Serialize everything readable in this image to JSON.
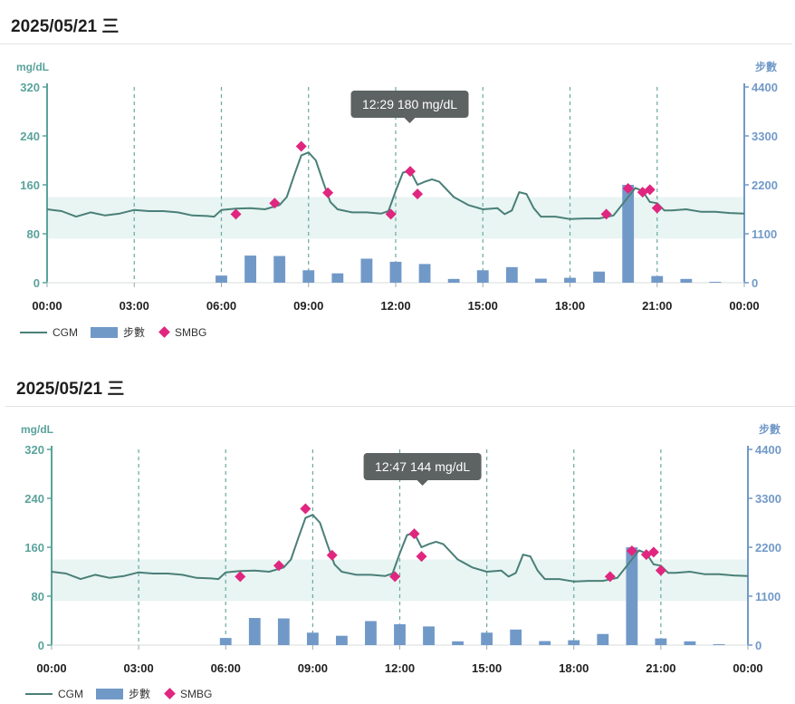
{
  "panels": [
    {
      "title": "2025/05/21 三",
      "tooltip_text": "12:29 180 mg/dL",
      "tooltip_time": 749
    },
    {
      "title": "2025/05/21 三",
      "tooltip_text": "12:47 144 mg/dL",
      "tooltip_time": 767
    }
  ],
  "legend": {
    "cgm": "CGM",
    "steps": "步數",
    "smbg": "SMBG"
  },
  "colors": {
    "cgm_line": "#4a7f78",
    "steps_bar": "#7199c8",
    "smbg_marker": "#e0267f",
    "target_band": "#e8f5f2",
    "left_axis": "#5aa39b",
    "right_axis": "#7199c8",
    "tooltip_bg": "#5d6262"
  },
  "chart_data": {
    "type": "line",
    "x_unit": "time of day",
    "xlim": [
      "00:00",
      "24:00"
    ],
    "x_ticks": [
      "00:00",
      "03:00",
      "06:00",
      "09:00",
      "12:00",
      "15:00",
      "18:00",
      "21:00",
      "00:00"
    ],
    "left_axis": {
      "label": "mg/dL",
      "ylim": [
        0,
        320
      ],
      "ticks": [
        0,
        80,
        160,
        240,
        320
      ]
    },
    "right_axis": {
      "label": "步數",
      "ylim": [
        0,
        4400
      ],
      "ticks": [
        0,
        1100,
        2200,
        3300,
        4400
      ]
    },
    "target_range": [
      72,
      140
    ],
    "grid": "vertical dashed at 3-hour ticks",
    "legend_position": "bottom-left",
    "series": [
      {
        "name": "CGM",
        "type": "line",
        "axis": "left",
        "points": [
          [
            "00:00",
            120
          ],
          [
            "00:30",
            117
          ],
          [
            "01:00",
            108
          ],
          [
            "01:30",
            115
          ],
          [
            "02:00",
            110
          ],
          [
            "02:30",
            113
          ],
          [
            "03:00",
            119
          ],
          [
            "03:30",
            117
          ],
          [
            "04:00",
            117
          ],
          [
            "04:30",
            115
          ],
          [
            "05:00",
            110
          ],
          [
            "05:30",
            109
          ],
          [
            "05:45",
            108
          ],
          [
            "06:00",
            119
          ],
          [
            "06:30",
            121
          ],
          [
            "07:00",
            122
          ],
          [
            "07:30",
            120
          ],
          [
            "08:00",
            127
          ],
          [
            "08:15",
            140
          ],
          [
            "08:30",
            175
          ],
          [
            "08:45",
            208
          ],
          [
            "09:00",
            213
          ],
          [
            "09:15",
            200
          ],
          [
            "09:30",
            165
          ],
          [
            "09:45",
            132
          ],
          [
            "10:00",
            120
          ],
          [
            "10:30",
            115
          ],
          [
            "11:00",
            115
          ],
          [
            "11:30",
            113
          ],
          [
            "11:45",
            117
          ],
          [
            "12:00",
            150
          ],
          [
            "12:15",
            180
          ],
          [
            "12:30",
            183
          ],
          [
            "12:45",
            160
          ],
          [
            "13:00",
            165
          ],
          [
            "13:15",
            169
          ],
          [
            "13:30",
            165
          ],
          [
            "14:00",
            140
          ],
          [
            "14:30",
            127
          ],
          [
            "15:00",
            120
          ],
          [
            "15:30",
            122
          ],
          [
            "15:45",
            112
          ],
          [
            "16:00",
            118
          ],
          [
            "16:15",
            148
          ],
          [
            "16:30",
            145
          ],
          [
            "16:45",
            122
          ],
          [
            "17:00",
            108
          ],
          [
            "17:30",
            108
          ],
          [
            "18:00",
            104
          ],
          [
            "18:30",
            105
          ],
          [
            "19:00",
            105
          ],
          [
            "19:30",
            110
          ],
          [
            "20:00",
            140
          ],
          [
            "20:15",
            155
          ],
          [
            "20:30",
            150
          ],
          [
            "20:45",
            132
          ],
          [
            "21:00",
            130
          ],
          [
            "21:15",
            118
          ],
          [
            "21:30",
            118
          ],
          [
            "22:00",
            120
          ],
          [
            "22:30",
            116
          ],
          [
            "23:00",
            116
          ],
          [
            "23:30",
            114
          ],
          [
            "24:00",
            113
          ]
        ]
      },
      {
        "name": "步數",
        "type": "bar",
        "axis": "right",
        "bar_width_minutes": 24,
        "points": [
          [
            "06:00",
            160
          ],
          [
            "07:00",
            610
          ],
          [
            "08:00",
            600
          ],
          [
            "09:00",
            280
          ],
          [
            "10:00",
            210
          ],
          [
            "11:00",
            540
          ],
          [
            "12:00",
            470
          ],
          [
            "13:00",
            420
          ],
          [
            "14:00",
            85
          ],
          [
            "15:00",
            280
          ],
          [
            "16:00",
            350
          ],
          [
            "17:00",
            90
          ],
          [
            "18:00",
            110
          ],
          [
            "19:00",
            250
          ],
          [
            "20:00",
            2200
          ],
          [
            "21:00",
            150
          ],
          [
            "22:00",
            85
          ],
          [
            "23:00",
            20
          ]
        ]
      },
      {
        "name": "SMBG",
        "type": "scatter",
        "axis": "left",
        "points": [
          [
            "06:30",
            112
          ],
          [
            "07:50",
            130
          ],
          [
            "08:45",
            223
          ],
          [
            "09:40",
            147
          ],
          [
            "11:50",
            112
          ],
          [
            "12:30",
            182
          ],
          [
            "12:45",
            145
          ],
          [
            "19:15",
            112
          ],
          [
            "20:00",
            154
          ],
          [
            "20:30",
            148
          ],
          [
            "20:45",
            152
          ],
          [
            "21:00",
            122
          ]
        ]
      }
    ]
  }
}
